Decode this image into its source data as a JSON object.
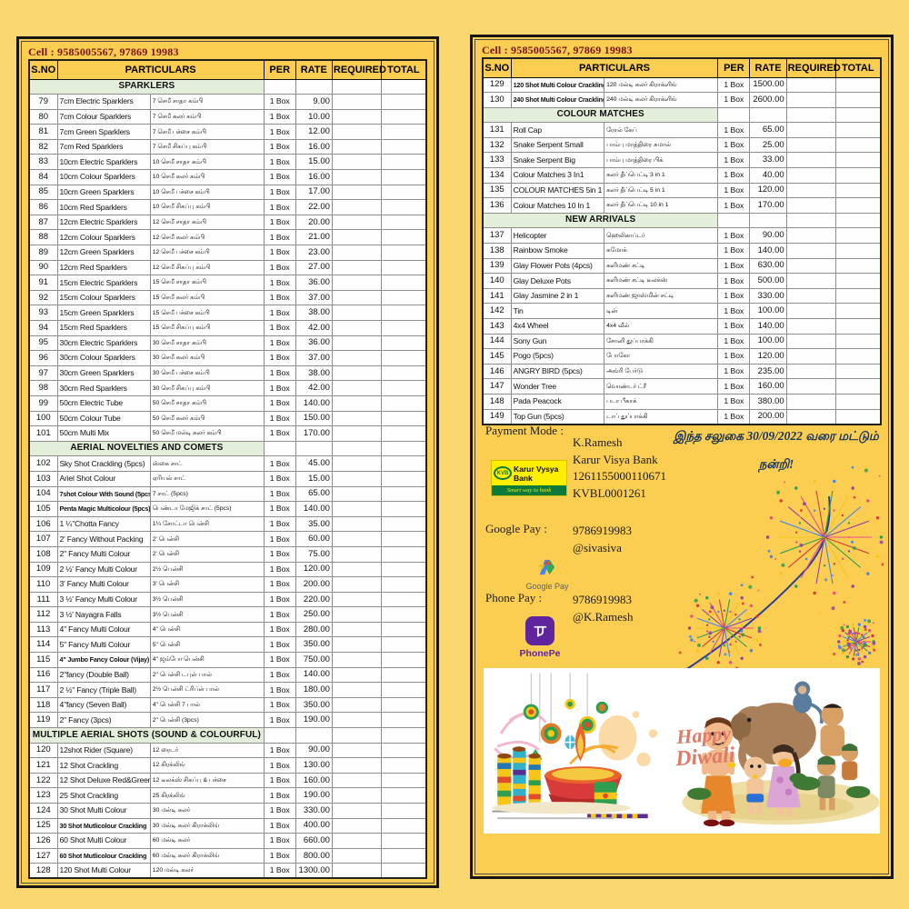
{
  "colors": {
    "background": "#fbd76f",
    "page": "#fbce52",
    "section_green": "#e3efda",
    "cell_text_red": "#7a1010",
    "offer_navy": "#16325c",
    "phonepe_purple": "#5f259f",
    "kvb_yellow": "#ffee00",
    "kvb_green": "#0b7a3b",
    "diwali_salmon": "#de7a66"
  },
  "contact": {
    "cell_line": "Cell : 9585005567, 97869 19983"
  },
  "columns": {
    "sno": "S.NO",
    "particulars": "PARTICULARS",
    "per": "PER",
    "rate": "RATE",
    "required": "REQUIRED",
    "total": "TOTAL"
  },
  "left_rows": [
    {
      "section": "SPARKLERS"
    },
    {
      "sno": "79",
      "en": "7cm Electric Sparklers",
      "ta": "7 செமீ சாதா கம்பி",
      "per": "1 Box",
      "rate": "9.00"
    },
    {
      "sno": "80",
      "en": "7cm Colour Sparklers",
      "ta": "7 செமீ கலர் கம்பி",
      "per": "1 Box",
      "rate": "10.00"
    },
    {
      "sno": "81",
      "en": "7cm Green Sparklers",
      "ta": "7 செமீ பச்சை கம்பி",
      "per": "1 Box",
      "rate": "12.00"
    },
    {
      "sno": "82",
      "en": "7cm Red Sparklers",
      "ta": "7 செமீ சிகப்பு கம்பி",
      "per": "1 Box",
      "rate": "16.00"
    },
    {
      "sno": "83",
      "en": "10cm Electric Sparklers",
      "ta": "10 செமீ சாதா கம்பி",
      "per": "1 Box",
      "rate": "15.00"
    },
    {
      "sno": "84",
      "en": "10cm Colour Sparklers",
      "ta": "10 செமீ கலர் கம்பி",
      "per": "1 Box",
      "rate": "16.00"
    },
    {
      "sno": "85",
      "en": "10cm Green Sparklers",
      "ta": "10 செமீ பச்சை கம்பி",
      "per": "1 Box",
      "rate": "17.00"
    },
    {
      "sno": "86",
      "en": "10cm Red Sparklers",
      "ta": "10 செமீ சிகப்பு கம்பி",
      "per": "1 Box",
      "rate": "22.00"
    },
    {
      "sno": "87",
      "en": "12cm Electric Sparklers",
      "ta": "12 செமீ சாதா கம்பி",
      "per": "1 Box",
      "rate": "20.00"
    },
    {
      "sno": "88",
      "en": "12cm Colour Sparklers",
      "ta": "12 செமீ கலர் கம்பி",
      "per": "1 Box",
      "rate": "21.00"
    },
    {
      "sno": "89",
      "en": "12cm Green Sparklers",
      "ta": "12 செமீ பச்சை கம்பி",
      "per": "1 Box",
      "rate": "23.00"
    },
    {
      "sno": "90",
      "en": "12cm Red Sparklers",
      "ta": "12 செமீ சிகப்பு கம்பி",
      "per": "1 Box",
      "rate": "27.00"
    },
    {
      "sno": "91",
      "en": "15cm Electric Sparklers",
      "ta": "15 செமீ சாதா கம்பி",
      "per": "1 Box",
      "rate": "36.00"
    },
    {
      "sno": "92",
      "en": "15cm Colour Sparklers",
      "ta": "15 செமீ கலர் கம்பி",
      "per": "1 Box",
      "rate": "37.00"
    },
    {
      "sno": "93",
      "en": "15cm Green Sparklers",
      "ta": "15 செமீ பச்சை கம்பி",
      "per": "1 Box",
      "rate": "38.00"
    },
    {
      "sno": "94",
      "en": "15cm Red Sparklers",
      "ta": "15 செமீ சிகப்பு கம்பி",
      "per": "1 Box",
      "rate": "42.00"
    },
    {
      "sno": "95",
      "en": "30cm Electric Sparklers",
      "ta": "30 செமீ சாதா கம்பி",
      "per": "1 Box",
      "rate": "36.00"
    },
    {
      "sno": "96",
      "en": "30cm Colour Sparklers",
      "ta": "30 செமீ கலர் கம்பி",
      "per": "1 Box",
      "rate": "37.00"
    },
    {
      "sno": "97",
      "en": "30cm Green Sparklers",
      "ta": "30 செமீ பச்சை கம்பி",
      "per": "1 Box",
      "rate": "38.00"
    },
    {
      "sno": "98",
      "en": "30cm Red Sparklers",
      "ta": "30 செமீ சிகப்பு கம்பி",
      "per": "1 Box",
      "rate": "42.00"
    },
    {
      "sno": "99",
      "en": "50cm Electric Tube",
      "ta": "50 செமீ சாதா கம்பி",
      "per": "1 Box",
      "rate": "140.00"
    },
    {
      "sno": "100",
      "en": "50cm Colour Tube",
      "ta": "50 செமீ கலர் கம்பி",
      "per": "1 Box",
      "rate": "150.00"
    },
    {
      "sno": "101",
      "en": "50cm Multi Mix",
      "ta": "50 செமீ மல்டி கலர் கம்பி",
      "per": "1 Box",
      "rate": "170.00"
    },
    {
      "section": "AERIAL NOVELTIES AND COMETS"
    },
    {
      "sno": "102",
      "en": "Sky Shot Crackling (5pcs)",
      "ta": "ஸ்கை சாட்",
      "per": "1 Box",
      "rate": "45.00"
    },
    {
      "sno": "103",
      "en": "Ariel Shot Colour",
      "ta": "ஏரியல் சாட்",
      "per": "1 Box",
      "rate": "15.00"
    },
    {
      "sno": "104",
      "en": "7shot Colour With Sound (5pcs)",
      "ta": "7 சாட் (5pcs)",
      "per": "1 Box",
      "rate": "65.00",
      "small": true
    },
    {
      "sno": "105",
      "en": "Penta Magic Multicolour (5pcs)",
      "ta": "பெண்டா மேஜிக் சாட் (5pcs)",
      "per": "1 Box",
      "rate": "140.00",
      "small": true
    },
    {
      "sno": "106",
      "en": "1 ¼''Chotta Fancy",
      "ta": "1¼ சோட்டா பென்சி",
      "per": "1 Box",
      "rate": "35.00"
    },
    {
      "sno": "107",
      "en": "2' Fancy Without Packing",
      "ta": "2' பென்சி",
      "per": "1 Box",
      "rate": "60.00"
    },
    {
      "sno": "108",
      "en": "2'' Fancy Multi Colour",
      "ta": "2' பென்சி",
      "per": "1 Box",
      "rate": "75.00"
    },
    {
      "sno": "109",
      "en": "2 ½' Fancy Multi Colour",
      "ta": "2½ பென்சி",
      "per": "1 Box",
      "rate": "120.00"
    },
    {
      "sno": "110",
      "en": "3' Fancy Multi Colour",
      "ta": "3' பென்சி",
      "per": "1 Box",
      "rate": "200.00"
    },
    {
      "sno": "111",
      "en": "3 ½' Fancy Multi Colour",
      "ta": "3½ பென்சி",
      "per": "1 Box",
      "rate": "220.00"
    },
    {
      "sno": "112",
      "en": "3 ½' Nayagra Falls",
      "ta": "3½ பென்சி",
      "per": "1 Box",
      "rate": "250.00"
    },
    {
      "sno": "113",
      "en": "4'' Fancy Multi Colour",
      "ta": "4\" பென்சி",
      "per": "1 Box",
      "rate": "280.00"
    },
    {
      "sno": "114",
      "en": "5\" Fancy Multi Colour",
      "ta": "5\" பென்சி",
      "per": "1 Box",
      "rate": "350.00"
    },
    {
      "sno": "115",
      "en": "4\" Jumbo Fancy Colour (Vijay)",
      "ta": "4\" ஜம்போ பென்சி",
      "per": "1 Box",
      "rate": "750.00",
      "small": true
    },
    {
      "sno": "116",
      "en": "2''fancy (Double Ball)",
      "ta": "2\" பென்சி டபுள் பால்",
      "per": "1 Box",
      "rate": "140.00"
    },
    {
      "sno": "117",
      "en": "2 ½\" Fancy (Triple Ball)",
      "ta": "2½ பென்சி ட்ரிப்ள் பால்",
      "per": "1 Box",
      "rate": "180.00"
    },
    {
      "sno": "118",
      "en": "4''fancy (Seven Ball)",
      "ta": "4\" பென்சி 7 பால்",
      "per": "1 Box",
      "rate": "350.00"
    },
    {
      "sno": "119",
      "en": "2'' Fancy (3pcs)",
      "ta": "2\" பென்சி  (3pcs)",
      "per": "1 Box",
      "rate": "190.00"
    },
    {
      "section": "MULTIPLE AERIAL SHOTS (SOUND & COLOURFUL)"
    },
    {
      "sno": "120",
      "en": "12shot Rider (Square)",
      "ta": "12 ரைடர்",
      "per": "1 Box",
      "rate": "90.00"
    },
    {
      "sno": "121",
      "en": "12 Shot Crackling",
      "ta": "12 கிரக்லிங்",
      "per": "1 Box",
      "rate": "130.00"
    },
    {
      "sno": "122",
      "en": "12 Shot Deluxe Red&Green",
      "ta": "12 டீலக்ஸ் சிகப்பு & பச்சை",
      "per": "1 Box",
      "rate": "160.00"
    },
    {
      "sno": "123",
      "en": "25 Shot Crackling",
      "ta": "25 கிரக்லிங்",
      "per": "1 Box",
      "rate": "190.00"
    },
    {
      "sno": "124",
      "en": "30 Shot Multi Colour",
      "ta": "30 மல்டி கலர்",
      "per": "1 Box",
      "rate": "330.00"
    },
    {
      "sno": "125",
      "en": "30 Shot Mutlicolour Crackling",
      "ta": "30 மல்டி கலர் கிராக்லிங்",
      "per": "1 Box",
      "rate": "400.00",
      "small": true
    },
    {
      "sno": "126",
      "en": "60 Shot Multi Colour",
      "ta": "60 மல்டி கலர்",
      "per": "1 Box",
      "rate": "660.00"
    },
    {
      "sno": "127",
      "en": "60 Shot Mutlicolour Crackling",
      "ta": "60 மல்டி கலர் கிராக்லிங்",
      "per": "1 Box",
      "rate": "800.00",
      "small": true
    },
    {
      "sno": "128",
      "en": "120 Shot Multi Colour",
      "ta": "120 மல்டி கலர்",
      "per": "1 Box",
      "rate": "1300.00"
    }
  ],
  "right_rows": [
    {
      "sno": "129",
      "en": "120 Shot Multi Colour Crackling",
      "ta": "120 மல்டி கலர் கிராக்ளிங்",
      "per": "1 Box",
      "rate": "1500.00",
      "small": true
    },
    {
      "sno": "130",
      "en": "240 Shot Multi Colour Crackling",
      "ta": "240 மல்டி கலர் கிராக்ளிங்",
      "per": "1 Box",
      "rate": "2600.00",
      "small": true
    },
    {
      "section": "COLOUR MATCHES"
    },
    {
      "sno": "131",
      "en": "Roll Cap",
      "ta": "ரோல் கேப்",
      "per": "1 Box",
      "rate": "65.00"
    },
    {
      "sno": "132",
      "en": "Snake Serpent Small",
      "ta": "பாம்பு மாத்திரை சுமால்",
      "per": "1 Box",
      "rate": "25.00"
    },
    {
      "sno": "133",
      "en": "Snake Serpent Big",
      "ta": "பாம்பு மாத்திரை பிக்",
      "per": "1 Box",
      "rate": "33.00"
    },
    {
      "sno": "134",
      "en": "Colour Matches 3 In1",
      "ta": "கலர் தீப்பெட்டி 3 in 1",
      "per": "1 Box",
      "rate": "40.00"
    },
    {
      "sno": "135",
      "en": "COLOUR MATCHES 5in 1",
      "ta": "கலர் தீப்பெட்டி 5 in 1",
      "per": "1 Box",
      "rate": "120.00"
    },
    {
      "sno": "136",
      "en": "Colour Matches 10 In 1",
      "ta": "கலர் தீப்பெட்டி 10 in 1",
      "per": "1 Box",
      "rate": "170.00"
    },
    {
      "section": "NEW ARRIVALS"
    },
    {
      "sno": "137",
      "en": "Helicopter",
      "ta": "ஹெலிகாப்டர்",
      "per": "1 Box",
      "rate": "90.00"
    },
    {
      "sno": "138",
      "en": "Rainbow Smoke",
      "ta": "சுமோக்",
      "per": "1 Box",
      "rate": "140.00"
    },
    {
      "sno": "139",
      "en": "Glay Flower Pots (4pcs)",
      "ta": "களிமண் சட்டி",
      "per": "1 Box",
      "rate": "630.00"
    },
    {
      "sno": "140",
      "en": "Glay Deluxe Pots",
      "ta": "களிமண் சட்டி டீலக்ஸ்",
      "per": "1 Box",
      "rate": "500.00"
    },
    {
      "sno": "141",
      "en": "Glay Jasmine 2 in 1",
      "ta": "களிமண் ஜாஸ்மின் சட்டி",
      "per": "1 Box",
      "rate": "330.00"
    },
    {
      "sno": "142",
      "en": "Tin",
      "ta": "டின்",
      "per": "1 Box",
      "rate": "100.00"
    },
    {
      "sno": "143",
      "en": "4x4 Wheel",
      "ta": "4x4 வீல்",
      "per": "1 Box",
      "rate": "140.00"
    },
    {
      "sno": "144",
      "en": "Sony Gun",
      "ta": "சோனி துப்பாக்கி",
      "per": "1 Box",
      "rate": "100.00"
    },
    {
      "sno": "145",
      "en": "Pogo (5pcs)",
      "ta": "போகோ",
      "per": "1 Box",
      "rate": "120.00"
    },
    {
      "sno": "146",
      "en": "ANGRY BIRD (5pcs)",
      "ta": "அங்ரி பேர்டு",
      "per": "1 Box",
      "rate": "235.00"
    },
    {
      "sno": "147",
      "en": "Wonder Tree",
      "ta": "வொண்டர் ட்ரீ",
      "per": "1 Box",
      "rate": "160.00"
    },
    {
      "sno": "148",
      "en": "Pada Peacock",
      "ta": "படா பீகாக்",
      "per": "1 Box",
      "rate": "380.00"
    },
    {
      "sno": "149",
      "en": "Top Gun (5pcs)",
      "ta": "டாப் துப்பாக்கி",
      "per": "1 Box",
      "rate": "200.00"
    }
  ],
  "payment": {
    "label": "Payment Mode :",
    "kvb": {
      "abbr": "KVB",
      "name": "Karur Vysya Bank",
      "tagline": "Smart way to bank"
    },
    "account": {
      "name": "K.Ramesh",
      "bank": "Karur Visya Bank",
      "number": "1261155000110671",
      "ifsc": "KVBL0001261"
    },
    "offer_line1": "இந்த சலுகை 30/09/2022  வரை மட்டும்",
    "offer_line2": "நன்றி!",
    "google_pay": {
      "label": "Google Pay :",
      "number": "9786919983",
      "handle": "@sivasiva",
      "caption": "Google Pay"
    },
    "phone_pay": {
      "label": "Phone Pay :",
      "number": "9786919983",
      "handle": "@K.Ramesh",
      "caption": "PhonePe"
    }
  },
  "illustration": {
    "happy_line1": "Happy",
    "happy_line2": "Diwali"
  }
}
